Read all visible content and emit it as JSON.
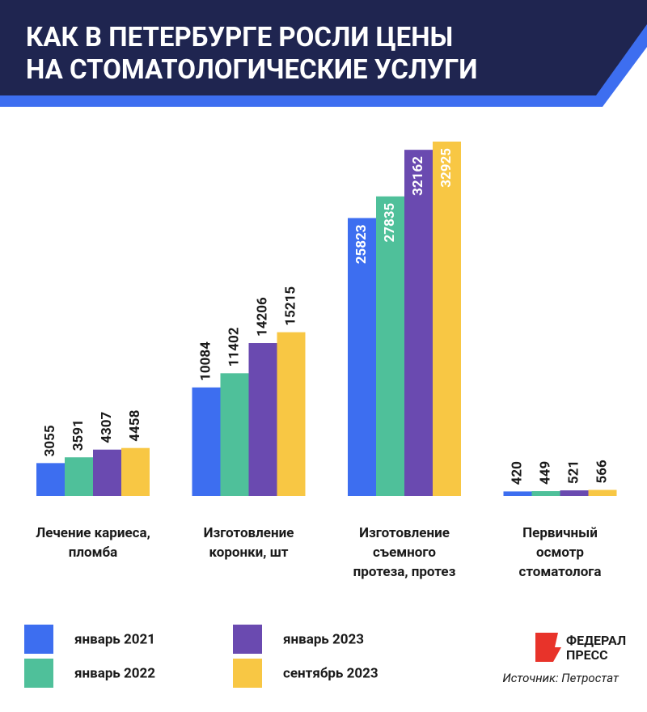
{
  "chart_data": {
    "type": "bar",
    "title": [
      "КАК В ПЕТЕРБУРГЕ РОСЛИ ЦЕНЫ",
      "НА СТОМАТОЛОГИЧЕСКИЕ УСЛУГИ"
    ],
    "categories": [
      [
        "Лечение кариеса,",
        "пломба"
      ],
      [
        "Изготовление",
        "коронки, шт"
      ],
      [
        "Изготовление",
        "съемного",
        "протеза, протез"
      ],
      [
        "Первичный",
        "осмотр",
        "стоматолога"
      ]
    ],
    "series": [
      {
        "name": "январь 2021",
        "color": "#3d6ef0",
        "values": [
          3055,
          10084,
          25823,
          420
        ]
      },
      {
        "name": "январь 2022",
        "color": "#4fc09a",
        "values": [
          3591,
          11402,
          27835,
          449
        ]
      },
      {
        "name": "январь 2023",
        "color": "#6a4ab0",
        "values": [
          4307,
          14206,
          32162,
          521
        ]
      },
      {
        "name": "сентябрь 2023",
        "color": "#f8c744",
        "values": [
          4458,
          15215,
          32925,
          566
        ]
      }
    ],
    "logo": [
      "ФЕДЕРАЛ",
      "ПРЕСС"
    ],
    "source": "Источник: Петростат"
  }
}
